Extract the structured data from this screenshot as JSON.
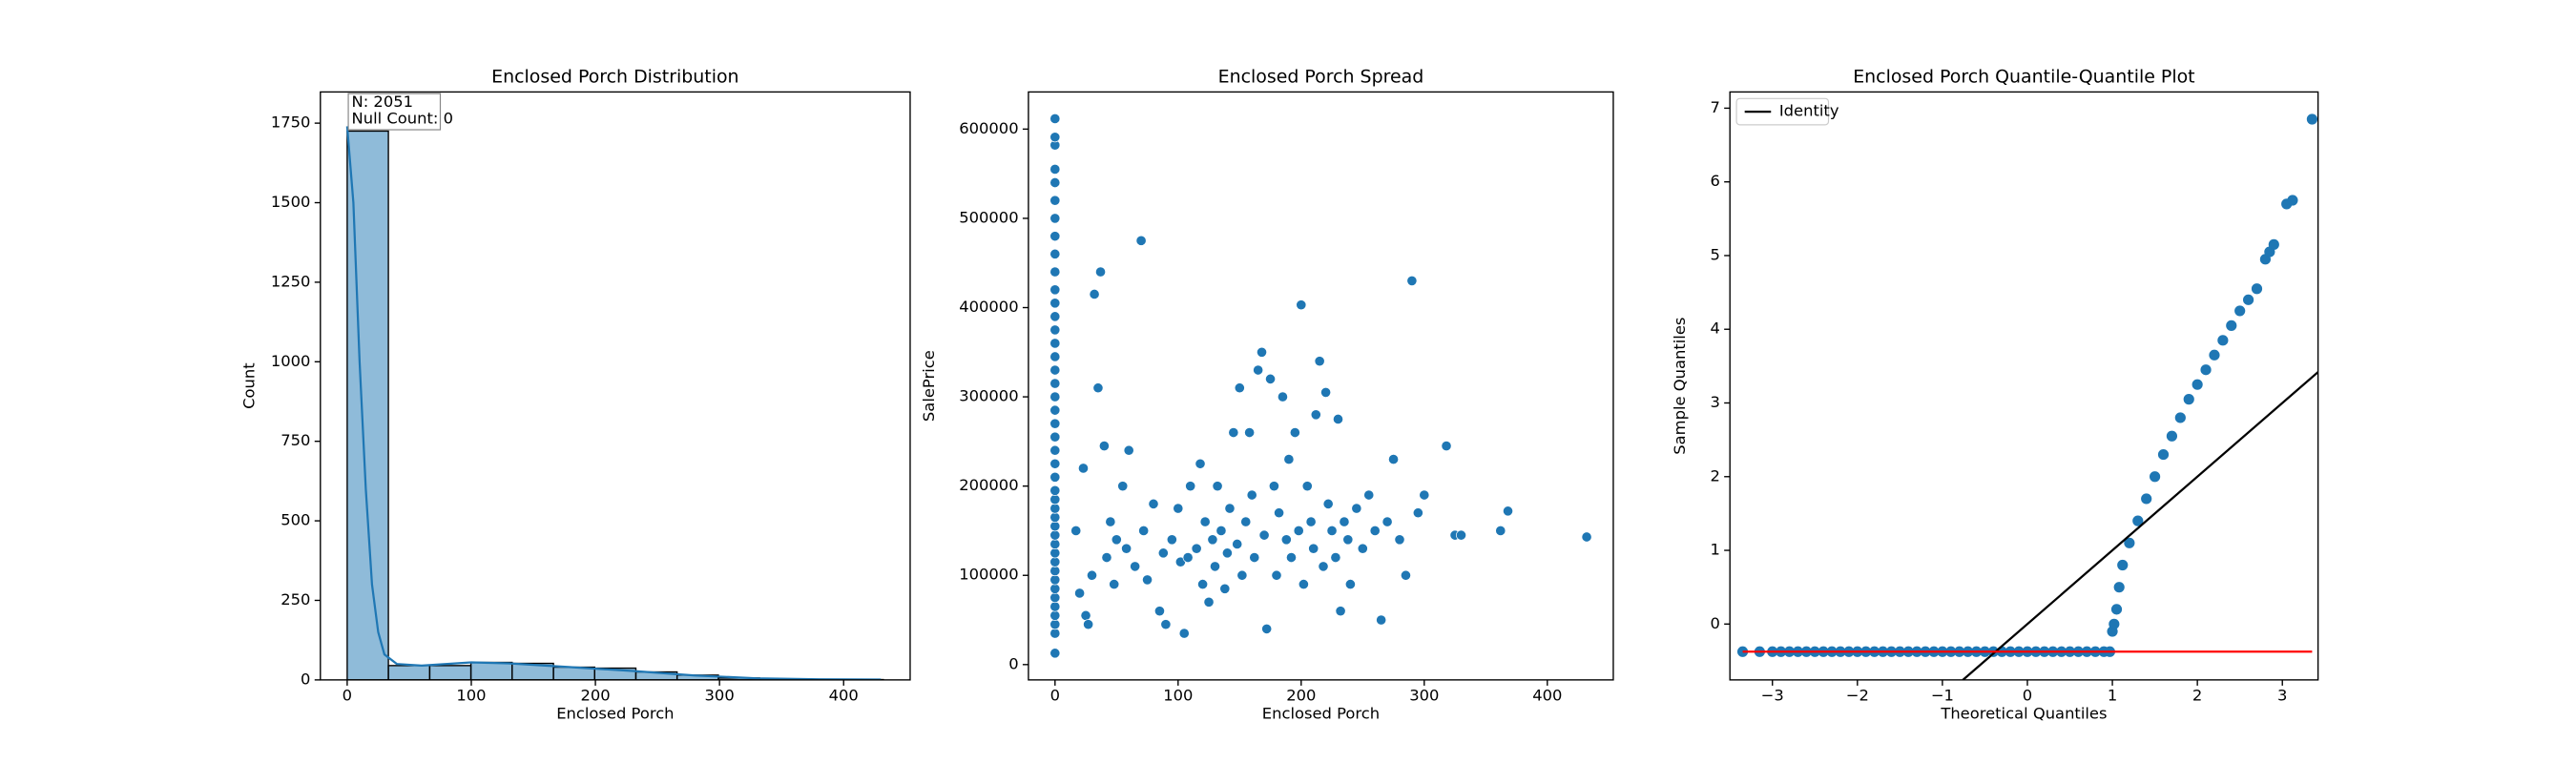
{
  "chart_data": [
    {
      "type": "histogram",
      "title": "Enclosed Porch Distribution",
      "xlabel": "Enclosed Porch",
      "ylabel": "Count",
      "bins": [
        0,
        33.2,
        66.5,
        99.7,
        132.9,
        166.2,
        199.4,
        232.6,
        265.8,
        299.1,
        332.3,
        365.5,
        398.8,
        432
      ],
      "counts": [
        1725,
        45,
        45,
        55,
        52,
        40,
        37,
        25,
        15,
        6,
        3,
        2,
        1
      ],
      "color": "#1f77b4",
      "kde": {
        "x": [
          0,
          5,
          10,
          15,
          20,
          25,
          30,
          40,
          60,
          100,
          130,
          180,
          230,
          280,
          330,
          380,
          430
        ],
        "values": [
          1740,
          1500,
          1000,
          600,
          300,
          150,
          80,
          50,
          45,
          55,
          52,
          40,
          28,
          14,
          5,
          2,
          1
        ]
      },
      "annotation": [
        "N: 2051",
        "Null Count: 0"
      ],
      "xlim": [
        -21.6,
        453.6
      ],
      "ylim": [
        0,
        1848
      ],
      "xticks": [
        0,
        100,
        200,
        300,
        400
      ],
      "yticks": [
        0,
        250,
        500,
        750,
        1000,
        1250,
        1500,
        1750
      ]
    },
    {
      "type": "scatter",
      "title": "Enclosed Porch Spread",
      "xlabel": "Enclosed Porch",
      "ylabel": "SalePrice",
      "color": "#1f77b4",
      "x": [
        0,
        0,
        0,
        0,
        0,
        0,
        0,
        0,
        0,
        0,
        0,
        0,
        0,
        0,
        0,
        0,
        0,
        0,
        0,
        0,
        0,
        0,
        0,
        0,
        0,
        0,
        0,
        0,
        0,
        0,
        0,
        0,
        0,
        0,
        0,
        0,
        0,
        0,
        0,
        0,
        0,
        0,
        0,
        17,
        20,
        23,
        25,
        27,
        30,
        32,
        35,
        37,
        40,
        42,
        45,
        48,
        50,
        55,
        58,
        60,
        65,
        70,
        72,
        75,
        80,
        85,
        88,
        90,
        95,
        100,
        102,
        105,
        108,
        110,
        115,
        118,
        120,
        122,
        125,
        128,
        130,
        132,
        135,
        138,
        140,
        142,
        145,
        148,
        150,
        152,
        155,
        158,
        160,
        162,
        165,
        168,
        170,
        172,
        175,
        178,
        180,
        182,
        185,
        188,
        190,
        192,
        195,
        198,
        200,
        202,
        205,
        208,
        210,
        212,
        215,
        218,
        220,
        222,
        225,
        228,
        230,
        232,
        235,
        238,
        240,
        245,
        250,
        255,
        260,
        265,
        270,
        275,
        280,
        285,
        290,
        295,
        300,
        318,
        325,
        330,
        362,
        368,
        432
      ],
      "values": [
        12789,
        35000,
        45000,
        55000,
        65000,
        75000,
        85000,
        95000,
        105000,
        115000,
        125000,
        135000,
        145000,
        155000,
        165000,
        175000,
        185000,
        195000,
        210000,
        225000,
        240000,
        255000,
        270000,
        285000,
        300000,
        315000,
        330000,
        345000,
        360000,
        375000,
        390000,
        405000,
        420000,
        440000,
        460000,
        480000,
        500000,
        520000,
        540000,
        555000,
        582000,
        591000,
        611657,
        150000,
        80000,
        220000,
        55000,
        45000,
        100000,
        415000,
        310000,
        440000,
        245000,
        120000,
        160000,
        90000,
        140000,
        200000,
        130000,
        240000,
        110000,
        475000,
        150000,
        95000,
        180000,
        60000,
        125000,
        45000,
        140000,
        175000,
        115000,
        35000,
        120000,
        200000,
        130000,
        225000,
        90000,
        160000,
        70000,
        140000,
        110000,
        200000,
        150000,
        85000,
        125000,
        175000,
        260000,
        135000,
        310000,
        100000,
        160000,
        260000,
        190000,
        120000,
        330000,
        350000,
        145000,
        40000,
        320000,
        200000,
        100000,
        170000,
        300000,
        140000,
        230000,
        120000,
        260000,
        150000,
        403000,
        90000,
        200000,
        160000,
        130000,
        280000,
        340000,
        110000,
        305000,
        180000,
        150000,
        120000,
        275000,
        60000,
        160000,
        140000,
        90000,
        175000,
        130000,
        190000,
        150000,
        50000,
        160000,
        230000,
        140000,
        100000,
        430000,
        170000,
        190000,
        245000,
        145000,
        145000,
        150000,
        172000,
        143000
      ],
      "xlim": [
        -21.6,
        453.6
      ],
      "ylim": [
        -17154,
        641600
      ],
      "xticks": [
        0,
        100,
        200,
        300,
        400
      ],
      "yticks": [
        0,
        100000,
        200000,
        300000,
        400000,
        500000,
        600000
      ]
    },
    {
      "type": "qq",
      "title": "Enclosed Porch Quantile-Quantile Plot",
      "xlabel": "Theoretical Quantiles",
      "ylabel": "Sample Quantiles",
      "color": "#1f77b4",
      "x": [
        -3.35,
        -3.15,
        -3.0,
        -2.9,
        -2.8,
        -2.7,
        -2.6,
        -2.5,
        -2.4,
        -2.3,
        -2.2,
        -2.1,
        -2.0,
        -1.9,
        -1.8,
        -1.7,
        -1.6,
        -1.5,
        -1.4,
        -1.3,
        -1.2,
        -1.1,
        -1.0,
        -0.9,
        -0.8,
        -0.7,
        -0.6,
        -0.5,
        -0.4,
        -0.3,
        -0.2,
        -0.1,
        0,
        0.1,
        0.2,
        0.3,
        0.4,
        0.5,
        0.6,
        0.7,
        0.8,
        0.9,
        0.97,
        1.0,
        1.02,
        1.05,
        1.08,
        1.12,
        1.2,
        1.3,
        1.4,
        1.5,
        1.6,
        1.7,
        1.8,
        1.9,
        2.0,
        2.1,
        2.2,
        2.3,
        2.4,
        2.5,
        2.6,
        2.7,
        2.8,
        2.85,
        2.9,
        3.05,
        3.12,
        3.35
      ],
      "values": [
        -0.375,
        -0.375,
        -0.375,
        -0.375,
        -0.375,
        -0.375,
        -0.375,
        -0.375,
        -0.375,
        -0.375,
        -0.375,
        -0.375,
        -0.375,
        -0.375,
        -0.375,
        -0.375,
        -0.375,
        -0.375,
        -0.375,
        -0.375,
        -0.375,
        -0.375,
        -0.375,
        -0.375,
        -0.375,
        -0.375,
        -0.375,
        -0.375,
        -0.375,
        -0.375,
        -0.375,
        -0.375,
        -0.375,
        -0.375,
        -0.375,
        -0.375,
        -0.375,
        -0.375,
        -0.375,
        -0.375,
        -0.375,
        -0.375,
        -0.375,
        -0.1,
        0,
        0.2,
        0.5,
        0.8,
        1.1,
        1.4,
        1.7,
        2.0,
        2.3,
        2.55,
        2.8,
        3.05,
        3.25,
        3.45,
        3.65,
        3.85,
        4.05,
        4.25,
        4.4,
        4.55,
        4.95,
        5.05,
        5.15,
        5.7,
        5.75,
        6.85
      ],
      "lines": [
        {
          "name": "Identity",
          "color": "#000000",
          "x": [
            -0.76,
            3.42
          ],
          "values": [
            -0.76,
            3.42
          ]
        },
        {
          "color": "#ff0000",
          "x": [
            -3.35,
            3.35
          ],
          "values": [
            -0.375,
            -0.375
          ]
        }
      ],
      "legend": "upper left",
      "xlim": [
        -3.5,
        3.42
      ],
      "ylim": [
        -0.758,
        7.22
      ],
      "xticks": [
        {
          "value": -3,
          "label": "−3"
        },
        {
          "value": -2,
          "label": "−2"
        },
        {
          "value": -1,
          "label": "−1"
        },
        0,
        1,
        2,
        3
      ],
      "yticks": [
        0,
        1,
        2,
        3,
        4,
        5,
        6,
        7
      ]
    }
  ]
}
